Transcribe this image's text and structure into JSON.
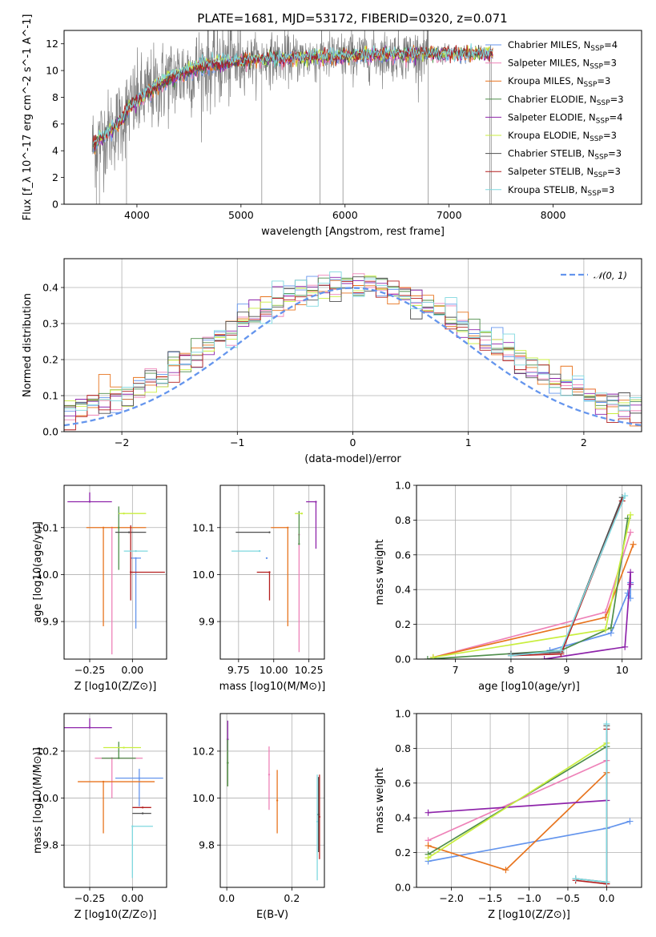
{
  "title": "PLATE=1681, MJD=53172, FIBERID=0320, z=0.071",
  "colors": {
    "Chabrier MILES": "#6495ED",
    "Salpeter MILES": "#EE82B8",
    "Kroupa MILES": "#E8741E",
    "Chabrier ELODIE": "#4E8E4A",
    "Salpeter ELODIE": "#8E24AA",
    "Kroupa ELODIE": "#C9EE3F",
    "Chabrier STELIB": "#4F4F4F",
    "Salpeter STELIB": "#B41F1F",
    "Kroupa STELIB": "#7FD8DF",
    "data": "#808080"
  },
  "chart_data": [
    {
      "type": "line",
      "title": "PLATE=1681, MJD=53172, FIBERID=0320, z=0.071",
      "xlabel": "wavelength [Angstrom, rest frame]",
      "ylabel": "Flux [f_λ 10^-17 erg cm^-2 s^-1 A^-1]",
      "xlim": [
        3300,
        8850
      ],
      "ylim": [
        0,
        13
      ],
      "xticks": [
        4000,
        5000,
        6000,
        7000,
        8000
      ],
      "yticks": [
        0,
        2,
        4,
        6,
        8,
        10,
        12
      ],
      "legend_position": "top-right",
      "legend": [
        "Chabrier MILES, N_SSP=4",
        "Salpeter MILES, N_SSP=3",
        "Kroupa MILES, N_SSP=3",
        "Chabrier ELODIE, N_SSP=3",
        "Salpeter ELODIE, N_SSP=4",
        "Kroupa ELODIE, N_SSP=3",
        "Chabrier STELIB, N_SSP=3",
        "Salpeter STELIB, N_SSP=3",
        "Kroupa STELIB, N_SSP=3"
      ],
      "continuum_x": [
        3580,
        3650,
        3800,
        3950,
        4100,
        4300,
        4500,
        4700,
        5000,
        5300,
        5600,
        5900,
        6200,
        6500,
        6800,
        7100,
        7400
      ],
      "continuum_y": [
        4.4,
        4.9,
        5.8,
        7.4,
        8.3,
        9.3,
        9.9,
        10.4,
        10.7,
        10.9,
        10.95,
        11.05,
        11.15,
        11.2,
        11.25,
        11.2,
        11.3
      ]
    },
    {
      "type": "bar",
      "title": "",
      "xlabel": "(data-model)/error",
      "ylabel": "Normed distribution",
      "xlim": [
        -2.5,
        2.5
      ],
      "ylim": [
        0,
        0.48
      ],
      "xticks": [
        -2,
        -1,
        0,
        1,
        2
      ],
      "yticks": [
        0.0,
        0.1,
        0.2,
        0.3,
        0.4
      ],
      "legend": [
        "𝒩(0, 1)"
      ],
      "legend_position": "top-right",
      "bin_width": 0.1,
      "reference_curve": "gaussian mean 0 sigma 1"
    },
    {
      "type": "scatter",
      "xlabel": "Z [log10(Z/Z⊙)]",
      "ylabel": "age  [log10(age/yr)]",
      "xlim": [
        -0.4,
        0.2
      ],
      "ylim": [
        9.82,
        10.19
      ],
      "xticks": [
        -0.25,
        0.0
      ],
      "xticklabels": [
        "−0.25",
        "0.00"
      ],
      "yticks": [
        9.9,
        10.0,
        10.1
      ],
      "points": [
        {
          "model": "Chabrier MILES",
          "x": 0.02,
          "xerr": [
            0.03,
            0.03
          ],
          "y": 10.035,
          "yerr": [
            0.15,
            0.0
          ]
        },
        {
          "model": "Salpeter MILES",
          "x": -0.12,
          "xerr": [
            0.0,
            0.0
          ],
          "y": 10.1,
          "yerr": [
            0.27,
            0.0
          ]
        },
        {
          "model": "Kroupa MILES",
          "x": -0.17,
          "xerr": [
            0.1,
            0.25
          ],
          "y": 10.1,
          "yerr": [
            0.21,
            0.0
          ]
        },
        {
          "model": "Chabrier ELODIE",
          "x": -0.08,
          "xerr": [
            0.0,
            0.0
          ],
          "y": 10.1,
          "yerr": [
            0.09,
            0.045
          ]
        },
        {
          "model": "Salpeter ELODIE",
          "x": -0.25,
          "xerr": [
            0.13,
            0.13
          ],
          "y": 10.155,
          "yerr": [
            0.0,
            0.02
          ]
        },
        {
          "model": "Kroupa ELODIE",
          "x": -0.05,
          "xerr": [
            0.03,
            0.13
          ],
          "y": 10.13,
          "yerr": [
            0.0,
            0.0
          ]
        },
        {
          "model": "Chabrier STELIB",
          "x": -0.02,
          "xerr": [
            0.08,
            0.1
          ],
          "y": 10.09,
          "yerr": [
            0.0,
            0.0
          ]
        },
        {
          "model": "Salpeter STELIB",
          "x": -0.01,
          "xerr": [
            0.0,
            0.2
          ],
          "y": 10.005,
          "yerr": [
            0.06,
            0.1
          ]
        },
        {
          "model": "Kroupa STELIB",
          "x": 0.02,
          "xerr": [
            0.07,
            0.07
          ],
          "y": 10.05,
          "yerr": [
            0.0,
            0.0
          ]
        }
      ]
    },
    {
      "type": "scatter",
      "xlabel": "mass [log10(M/M⊙)]",
      "ylabel": "",
      "xlim": [
        9.62,
        10.36
      ],
      "ylim": [
        9.82,
        10.19
      ],
      "xticks": [
        9.75,
        10.0,
        10.25
      ],
      "xticklabels": [
        "9.75",
        "10.00",
        "10.25"
      ],
      "yticks": [
        9.9,
        10.0,
        10.1
      ],
      "points": [
        {
          "model": "Chabrier MILES",
          "x": 9.95,
          "xerr": [
            0.0,
            0.0
          ],
          "y": 10.035,
          "yerr": [
            0.0,
            0.0
          ]
        },
        {
          "model": "Salpeter MILES",
          "x": 10.18,
          "xerr": [
            0.0,
            0.0
          ],
          "y": 10.085,
          "yerr": [
            0.25,
            0.0
          ]
        },
        {
          "model": "Kroupa MILES",
          "x": 10.1,
          "xerr": [
            0.12,
            0.0
          ],
          "y": 10.1,
          "yerr": [
            0.21,
            0.0
          ]
        },
        {
          "model": "Chabrier ELODIE",
          "x": 10.18,
          "xerr": [
            0.0,
            0.0
          ],
          "y": 10.065,
          "yerr": [
            0.0,
            0.07
          ]
        },
        {
          "model": "Salpeter ELODIE",
          "x": 10.3,
          "xerr": [
            0.07,
            0.0
          ],
          "y": 10.155,
          "yerr": [
            0.1,
            0.0
          ]
        },
        {
          "model": "Kroupa ELODIE",
          "x": 10.2,
          "xerr": [
            0.05,
            0.0
          ],
          "y": 10.13,
          "yerr": [
            0.0,
            0.0
          ]
        },
        {
          "model": "Chabrier STELIB",
          "x": 9.97,
          "xerr": [
            0.24,
            0.0
          ],
          "y": 10.09,
          "yerr": [
            0.0,
            0.0
          ]
        },
        {
          "model": "Salpeter STELIB",
          "x": 9.97,
          "xerr": [
            0.09,
            0.0
          ],
          "y": 10.005,
          "yerr": [
            0.06,
            0.0
          ]
        },
        {
          "model": "Kroupa STELIB",
          "x": 9.9,
          "xerr": [
            0.2,
            0.0
          ],
          "y": 10.05,
          "yerr": [
            0.0,
            0.0
          ]
        }
      ]
    },
    {
      "type": "line",
      "xlabel": "age  [log10(age/yr)]",
      "ylabel": "mass weight",
      "xlim": [
        6.3,
        10.35
      ],
      "ylim": [
        0,
        1
      ],
      "xticks": [
        7,
        8,
        9,
        10
      ],
      "yticks": [
        0.0,
        0.2,
        0.4,
        0.6,
        0.8,
        1.0
      ],
      "series": [
        {
          "model": "Chabrier MILES",
          "x": [
            8.7,
            9.8,
            10.1,
            10.15,
            10.15
          ],
          "y": [
            0.05,
            0.15,
            0.38,
            0.35,
            0.44
          ]
        },
        {
          "model": "Salpeter MILES",
          "x": [
            6.6,
            9.7,
            10.15
          ],
          "y": [
            0.01,
            0.27,
            0.73
          ]
        },
        {
          "model": "Kroupa MILES",
          "x": [
            6.6,
            9.7,
            10.2
          ],
          "y": [
            0.01,
            0.24,
            0.66
          ]
        },
        {
          "model": "Chabrier ELODIE",
          "x": [
            6.5,
            8.9,
            9.8,
            10.1
          ],
          "y": [
            0.0,
            0.05,
            0.18,
            0.81
          ]
        },
        {
          "model": "Salpeter ELODIE",
          "x": [
            8.6,
            10.05,
            10.15,
            10.15
          ],
          "y": [
            0.0,
            0.07,
            0.5,
            0.43
          ]
        },
        {
          "model": "Kroupa ELODIE",
          "x": [
            6.6,
            9.7,
            10.15
          ],
          "y": [
            0.01,
            0.17,
            0.83
          ]
        },
        {
          "model": "Chabrier STELIB",
          "x": [
            8.0,
            8.9,
            10.0
          ],
          "y": [
            0.03,
            0.04,
            0.93
          ]
        },
        {
          "model": "Salpeter STELIB",
          "x": [
            8.0,
            8.9,
            10.0
          ],
          "y": [
            0.02,
            0.03,
            0.91
          ]
        },
        {
          "model": "Kroupa STELIB",
          "x": [
            8.0,
            8.9,
            10.05
          ],
          "y": [
            0.02,
            0.05,
            0.94
          ]
        }
      ]
    },
    {
      "type": "scatter",
      "xlabel": "Z [log10(Z/Z⊙)]",
      "ylabel": "mass [log10(M/M⊙)]",
      "xlim": [
        -0.4,
        0.2
      ],
      "ylim": [
        9.62,
        10.36
      ],
      "xticks": [
        -0.25,
        0.0
      ],
      "xticklabels": [
        "−0.25",
        "0.00"
      ],
      "yticks": [
        9.8,
        10.0,
        10.2
      ],
      "points": [
        {
          "model": "Chabrier MILES",
          "x": 0.04,
          "xerr": [
            0.14,
            0.14
          ],
          "y": 10.085,
          "yerr": [
            0.12,
            0.04
          ]
        },
        {
          "model": "Salpeter MILES",
          "x": -0.12,
          "xerr": [
            0.1,
            0.18
          ],
          "y": 10.17,
          "yerr": [
            0.17,
            0.0
          ]
        },
        {
          "model": "Kroupa MILES",
          "x": -0.17,
          "xerr": [
            0.15,
            0.3
          ],
          "y": 10.07,
          "yerr": [
            0.22,
            0.0
          ]
        },
        {
          "model": "Chabrier ELODIE",
          "x": -0.08,
          "xerr": [
            0.1,
            0.1
          ],
          "y": 10.17,
          "yerr": [
            0.0,
            0.07
          ]
        },
        {
          "model": "Salpeter ELODIE",
          "x": -0.25,
          "xerr": [
            0.15,
            0.13
          ],
          "y": 10.3,
          "yerr": [
            0.0,
            0.04
          ]
        },
        {
          "model": "Kroupa ELODIE",
          "x": -0.05,
          "xerr": [
            0.12,
            0.1
          ],
          "y": 10.215,
          "yerr": [
            0.0,
            0.0
          ]
        },
        {
          "model": "Chabrier STELIB",
          "x": 0.06,
          "xerr": [
            0.06,
            0.05
          ],
          "y": 9.935,
          "yerr": [
            0.0,
            0.0
          ]
        },
        {
          "model": "Salpeter STELIB",
          "x": 0.06,
          "xerr": [
            0.06,
            0.05
          ],
          "y": 9.96,
          "yerr": [
            0.0,
            0.0
          ]
        },
        {
          "model": "Kroupa STELIB",
          "x": 0.0,
          "xerr": [
            0.0,
            0.12
          ],
          "y": 9.88,
          "yerr": [
            0.22,
            0.0
          ]
        }
      ]
    },
    {
      "type": "scatter",
      "xlabel": "E(B-V)",
      "ylabel": "",
      "xlim": [
        -0.02,
        0.3
      ],
      "ylim": [
        9.62,
        10.36
      ],
      "xticks": [
        0.0,
        0.2
      ],
      "xticklabels": [
        "0.0",
        "0.2"
      ],
      "yticks": [
        9.8,
        10.0,
        10.2
      ],
      "points": [
        {
          "model": "Salpeter MILES",
          "x": 0.13,
          "y": 10.1,
          "yerr": [
            0.15,
            0.12
          ]
        },
        {
          "model": "Kroupa MILES",
          "x": 0.155,
          "y": 9.99,
          "yerr": [
            0.14,
            0.13
          ]
        },
        {
          "model": "Kroupa ELODIE",
          "x": 0.003,
          "y": 10.15,
          "yerr": [
            0.1,
            0.1
          ]
        },
        {
          "model": "Salpeter ELODIE",
          "x": 0.003,
          "y": 10.25,
          "yerr": [
            0.05,
            0.08
          ]
        },
        {
          "model": "Chabrier ELODIE",
          "x": 0.003,
          "y": 10.15,
          "yerr": [
            0.1,
            0.1
          ]
        },
        {
          "model": "Kroupa STELIB",
          "x": 0.278,
          "y": 9.9,
          "yerr": [
            0.25,
            0.2
          ]
        },
        {
          "model": "Salpeter STELIB",
          "x": 0.285,
          "y": 9.92,
          "yerr": [
            0.18,
            0.18
          ]
        },
        {
          "model": "Chabrier STELIB",
          "x": 0.282,
          "y": 9.93,
          "yerr": [
            0.16,
            0.16
          ]
        }
      ]
    },
    {
      "type": "line",
      "xlabel": "Z [log10(Z/Z⊙)]",
      "ylabel": "mass weight",
      "xlim": [
        -2.45,
        0.45
      ],
      "ylim": [
        0,
        1
      ],
      "xticks": [
        -2.0,
        -1.5,
        -1.0,
        -0.5,
        0.0
      ],
      "xticklabels": [
        "−2.0",
        "−1.5",
        "−1.0",
        "−0.5",
        "0.0"
      ],
      "yticks": [
        0.0,
        0.2,
        0.4,
        0.6,
        0.8,
        1.0
      ],
      "series": [
        {
          "model": "Chabrier MILES",
          "x": [
            -2.3,
            0.0,
            0.3
          ],
          "y": [
            0.15,
            0.34,
            0.38
          ]
        },
        {
          "model": "Salpeter MILES",
          "x": [
            -2.3,
            0.0
          ],
          "y": [
            0.27,
            0.73
          ]
        },
        {
          "model": "Kroupa MILES",
          "x": [
            -2.3,
            -1.3,
            0.0
          ],
          "y": [
            0.24,
            0.1,
            0.66
          ]
        },
        {
          "model": "Chabrier ELODIE",
          "x": [
            -2.3,
            0.0
          ],
          "y": [
            0.19,
            0.81
          ]
        },
        {
          "model": "Salpeter ELODIE",
          "x": [
            -2.3,
            0.0
          ],
          "y": [
            0.43,
            0.5
          ]
        },
        {
          "model": "Kroupa ELODIE",
          "x": [
            -2.3,
            0.0
          ],
          "y": [
            0.17,
            0.83
          ]
        },
        {
          "model": "Chabrier STELIB",
          "x": [
            -0.4,
            0.0,
            0.0
          ],
          "y": [
            0.05,
            0.03,
            0.93
          ]
        },
        {
          "model": "Salpeter STELIB",
          "x": [
            -0.4,
            0.0,
            0.0
          ],
          "y": [
            0.04,
            0.02,
            0.91
          ]
        },
        {
          "model": "Kroupa STELIB",
          "x": [
            -0.4,
            0.0,
            0.0
          ],
          "y": [
            0.05,
            0.03,
            0.94
          ]
        }
      ]
    }
  ]
}
